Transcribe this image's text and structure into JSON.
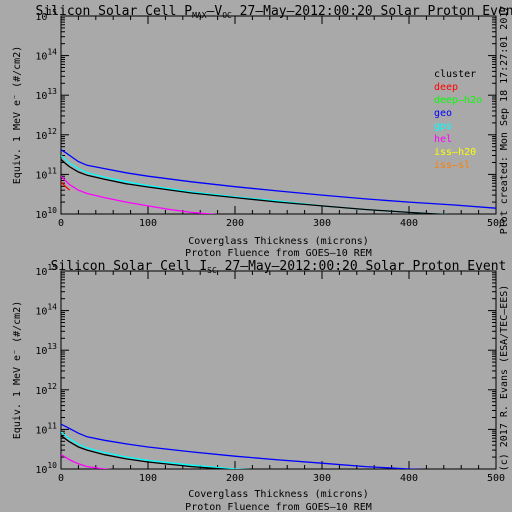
{
  "chart_data": [
    {
      "type": "line",
      "title": "Silicon Solar Cell P_MAX–V_OC 27–May–2012:00:20 Solar Proton Event",
      "title_parts": {
        "prefix": "Silicon Solar Cell P",
        "sub1": "MAX",
        "mid": "–V",
        "sub2": "OC",
        "suffix": " 27–May–2012:00:20 Solar Proton Event"
      },
      "xlabel": "Coverglass Thickness (microns)",
      "xlabel2": "Proton Fluence from GOES–10 REM",
      "ylabel": "Equiv. 1 MeV e⁻ (#/cm2)",
      "xlim": [
        0,
        500
      ],
      "ylim": [
        10000000000,
        1000000000000000
      ],
      "yscale": "log",
      "xticks": [
        "0",
        "100",
        "200",
        "300",
        "400",
        "500"
      ],
      "yticks": [
        "10",
        "11",
        "12",
        "13",
        "14",
        "15"
      ],
      "legend": {
        "placement": "right",
        "entries": [
          {
            "label": "cluster",
            "color": "#000000"
          },
          {
            "label": "deep",
            "color": "#ff0000"
          },
          {
            "label": "deep–h2o",
            "color": "#00ff00"
          },
          {
            "label": "geo",
            "color": "#0000ff"
          },
          {
            "label": "gps",
            "color": "#00ffff"
          },
          {
            "label": "hel",
            "color": "#ff00ff"
          },
          {
            "label": "iss–h20",
            "color": "#ffff00"
          },
          {
            "label": "iss–sl",
            "color": "#ff7f00"
          }
        ]
      },
      "series": [
        {
          "name": "geo",
          "color": "#0000ff",
          "x": [
            0,
            5,
            10,
            20,
            30,
            50,
            75,
            100,
            150,
            200,
            250,
            300,
            350,
            400,
            450,
            500
          ],
          "y": [
            420000000000.0,
            360000000000.0,
            300000000000.0,
            210000000000.0,
            170000000000.0,
            140000000000.0,
            110000000000.0,
            90000000000.0,
            65000000000.0,
            49000000000.0,
            38000000000.0,
            30000000000.0,
            24000000000.0,
            20000000000.0,
            17000000000.0,
            14000000000.0
          ]
        },
        {
          "name": "gps",
          "color": "#00ffff",
          "x": [
            0,
            5,
            10,
            20,
            30,
            50,
            75,
            100,
            150,
            200,
            250,
            300,
            350,
            400,
            450,
            500
          ],
          "y": [
            300000000000.0,
            240000000000.0,
            190000000000.0,
            140000000000.0,
            110000000000.0,
            85000000000.0,
            65000000000.0,
            52000000000.0,
            36000000000.0,
            27000000000.0,
            21000000000.0,
            16000000000.0,
            13000000000.0,
            11000000000.0,
            9500000000.0,
            8500000000.0
          ]
        },
        {
          "name": "cluster",
          "color": "#000000",
          "x": [
            0,
            5,
            10,
            20,
            30,
            50,
            75,
            100,
            150,
            200,
            250,
            300,
            350,
            400,
            450,
            500
          ],
          "y": [
            240000000000.0,
            190000000000.0,
            155000000000.0,
            115000000000.0,
            95000000000.0,
            75000000000.0,
            58000000000.0,
            48000000000.0,
            34000000000.0,
            26000000000.0,
            20000000000.0,
            16000000000.0,
            13000000000.0,
            11000000000.0,
            9500000000.0,
            8500000000.0
          ]
        },
        {
          "name": "hel",
          "color": "#ff00ff",
          "x": [
            0,
            5,
            10,
            20,
            30,
            50,
            75,
            100,
            125,
            150,
            175,
            200
          ],
          "y": [
            90000000000.0,
            70000000000.0,
            55000000000.0,
            40000000000.0,
            33000000000.0,
            26000000000.0,
            20000000000.0,
            16000000000.0,
            13000000000.0,
            11000000000.0,
            9800000000.0,
            9000000000.0
          ]
        },
        {
          "name": "deep",
          "color": "#ff0000",
          "x": [
            0,
            5,
            10
          ],
          "y": [
            65000000000.0,
            50000000000.0,
            40000000000.0
          ]
        }
      ]
    },
    {
      "type": "line",
      "title": "Silicon Solar Cell I_SC 27–May–2012:00:20 Solar Proton Event",
      "title_parts": {
        "prefix": "Silicon Solar Cell I",
        "sub1": "SC",
        "suffix": " 27–May–2012:00:20 Solar Proton Event"
      },
      "xlabel": "Coverglass Thickness (microns)",
      "xlabel2": "Proton Fluence from GOES–10 REM",
      "ylabel": "Equiv. 1 MeV e⁻ (#/cm2)",
      "xlim": [
        0,
        500
      ],
      "ylim": [
        10000000000,
        1000000000000000
      ],
      "yscale": "log",
      "xticks": [
        "0",
        "100",
        "200",
        "300",
        "400",
        "500"
      ],
      "yticks": [
        "10",
        "11",
        "12",
        "13",
        "14",
        "15"
      ],
      "series": [
        {
          "name": "geo",
          "color": "#0000ff",
          "x": [
            0,
            5,
            10,
            20,
            30,
            50,
            75,
            100,
            150,
            200,
            250,
            300,
            350,
            400,
            450,
            500
          ],
          "y": [
            135000000000.0,
            120000000000.0,
            105000000000.0,
            80000000000.0,
            65000000000.0,
            53000000000.0,
            43000000000.0,
            36000000000.0,
            27000000000.0,
            21000000000.0,
            17000000000.0,
            14000000000.0,
            11500000000.0,
            10000000000.0,
            9000000000.0,
            8000000000.0
          ]
        },
        {
          "name": "gps",
          "color": "#00ffff",
          "x": [
            0,
            5,
            10,
            20,
            30,
            50,
            75,
            100,
            150,
            200,
            250,
            300,
            350
          ],
          "y": [
            85000000000.0,
            70000000000.0,
            57000000000.0,
            42000000000.0,
            34000000000.0,
            26000000000.0,
            20000000000.0,
            16500000000.0,
            12500000000.0,
            10000000000.0,
            9000000000.0,
            8000000000.0,
            7000000000.0
          ]
        },
        {
          "name": "cluster",
          "color": "#000000",
          "x": [
            0,
            5,
            10,
            20,
            30,
            50,
            75,
            100,
            150,
            200,
            250,
            300,
            350
          ],
          "y": [
            70000000000.0,
            58000000000.0,
            48000000000.0,
            36000000000.0,
            30000000000.0,
            23000000000.0,
            18000000000.0,
            15000000000.0,
            11500000000.0,
            9500000000.0,
            8500000000.0,
            7500000000.0,
            7000000000.0
          ]
        },
        {
          "name": "hel",
          "color": "#ff00ff",
          "x": [
            0,
            5,
            10,
            20,
            30,
            50,
            75
          ],
          "y": [
            23000000000.0,
            20000000000.0,
            17000000000.0,
            13500000000.0,
            11500000000.0,
            10000000000.0,
            9000000000.0
          ]
        }
      ]
    }
  ],
  "side_text": {
    "top": "Plot created: Mon Sep 18 17:27:01 2017",
    "bottom": "(c) 2017 R. Evans (ESA/TEC–EES)"
  }
}
